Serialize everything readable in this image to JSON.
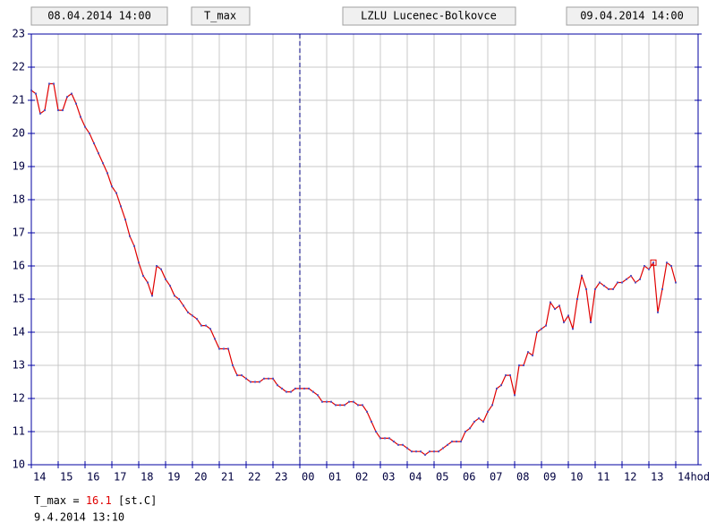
{
  "header": {
    "start": "08.04.2014 14:00",
    "variable": "T_max",
    "station": "LZLU Lucenec-Bolkovce",
    "end": "09.04.2014 14:00"
  },
  "chart_data": {
    "type": "line",
    "x": [
      14,
      14.167,
      14.333,
      14.5,
      14.667,
      14.833,
      15,
      15.167,
      15.333,
      15.5,
      15.667,
      15.833,
      16,
      16.167,
      16.333,
      16.5,
      16.667,
      16.833,
      17,
      17.167,
      17.333,
      17.5,
      17.667,
      17.833,
      18,
      18.167,
      18.333,
      18.5,
      18.667,
      18.833,
      19,
      19.167,
      19.333,
      19.5,
      19.667,
      19.833,
      20,
      20.167,
      20.333,
      20.5,
      20.667,
      20.833,
      21,
      21.167,
      21.333,
      21.5,
      21.667,
      21.833,
      22,
      22.167,
      22.333,
      22.5,
      22.667,
      22.833,
      23,
      23.167,
      23.333,
      23.5,
      23.667,
      23.833,
      24,
      24.167,
      24.333,
      24.5,
      24.667,
      24.833,
      25,
      25.167,
      25.333,
      25.5,
      25.667,
      25.833,
      26,
      26.167,
      26.333,
      26.5,
      26.667,
      26.833,
      27,
      27.167,
      27.333,
      27.5,
      27.667,
      27.833,
      28,
      28.167,
      28.333,
      28.5,
      28.667,
      28.833,
      29,
      29.167,
      29.333,
      29.5,
      29.667,
      29.833,
      30,
      30.167,
      30.333,
      30.5,
      30.667,
      30.833,
      31,
      31.167,
      31.333,
      31.5,
      31.667,
      31.833,
      32,
      32.167,
      32.333,
      32.5,
      32.667,
      32.833,
      33,
      33.167,
      33.333,
      33.5,
      33.667,
      33.833,
      34,
      34.167,
      34.333,
      34.5,
      34.667,
      34.833,
      35,
      35.167,
      35.333,
      35.5,
      35.667,
      35.833,
      36,
      36.167,
      36.333,
      36.5,
      36.667,
      36.833,
      37,
      37.167,
      37.333,
      37.5,
      37.667,
      37.833,
      38
    ],
    "series": [
      {
        "name": "T_max",
        "color": "#e00000",
        "point_color": "#5050c0",
        "values": [
          21.3,
          21.2,
          20.6,
          20.7,
          21.5,
          21.5,
          20.7,
          20.7,
          21.1,
          21.2,
          20.9,
          20.5,
          20.2,
          20.0,
          19.7,
          19.4,
          19.1,
          18.8,
          18.4,
          18.2,
          17.8,
          17.4,
          16.9,
          16.6,
          16.1,
          15.7,
          15.5,
          15.1,
          16.0,
          15.9,
          15.6,
          15.4,
          15.1,
          15.0,
          14.8,
          14.6,
          14.5,
          14.4,
          14.2,
          14.2,
          14.1,
          13.8,
          13.5,
          13.5,
          13.5,
          13.0,
          12.7,
          12.7,
          12.6,
          12.5,
          12.5,
          12.5,
          12.6,
          12.6,
          12.6,
          12.4,
          12.3,
          12.2,
          12.2,
          12.3,
          12.3,
          12.3,
          12.3,
          12.2,
          12.1,
          11.9,
          11.9,
          11.9,
          11.8,
          11.8,
          11.8,
          11.9,
          11.9,
          11.8,
          11.8,
          11.6,
          11.3,
          11.0,
          10.8,
          10.8,
          10.8,
          10.7,
          10.6,
          10.6,
          10.5,
          10.4,
          10.4,
          10.4,
          10.3,
          10.4,
          10.4,
          10.4,
          10.5,
          10.6,
          10.7,
          10.7,
          10.7,
          11.0,
          11.1,
          11.3,
          11.4,
          11.3,
          11.6,
          11.8,
          12.3,
          12.4,
          12.7,
          12.7,
          12.1,
          13.0,
          13.0,
          13.4,
          13.3,
          14.0,
          14.1,
          14.2,
          14.9,
          14.7,
          14.8,
          14.3,
          14.5,
          14.1,
          15.0,
          15.7,
          15.3,
          14.3,
          15.3,
          15.5,
          15.4,
          15.3,
          15.3,
          15.5,
          15.5,
          15.6,
          15.7,
          15.5,
          15.6,
          16.0,
          15.9,
          16.1,
          14.6,
          15.3,
          16.1,
          16.0,
          15.5
        ]
      }
    ],
    "highlight_index": 139,
    "vlines": [
      24
    ],
    "xlim": [
      14,
      38.833
    ],
    "xticks": [
      14,
      15,
      16,
      17,
      18,
      19,
      20,
      21,
      22,
      23,
      {
        "value": 24,
        "label": "00"
      },
      {
        "value": 25,
        "label": "01"
      },
      {
        "value": 26,
        "label": "02"
      },
      {
        "value": 27,
        "label": "03"
      },
      {
        "value": 28,
        "label": "04"
      },
      {
        "value": 29,
        "label": "05"
      },
      {
        "value": 30,
        "label": "06"
      },
      {
        "value": 31,
        "label": "07"
      },
      {
        "value": 32,
        "label": "08"
      },
      {
        "value": 33,
        "label": "09"
      },
      {
        "value": 34,
        "label": "10"
      },
      {
        "value": 35,
        "label": "11"
      },
      {
        "value": 36,
        "label": "12"
      },
      {
        "value": 37,
        "label": "13"
      },
      {
        "value": 38,
        "label": "14hod"
      }
    ],
    "ylim": [
      10,
      23
    ],
    "yticks": [
      10,
      11,
      12,
      13,
      14,
      15,
      16,
      17,
      18,
      19,
      20,
      21,
      22,
      23
    ],
    "grid": true
  },
  "readout": {
    "label": "T_max =",
    "value": 16.1,
    "unit": "[st.C]",
    "time": "9.4.2014 13:10"
  }
}
